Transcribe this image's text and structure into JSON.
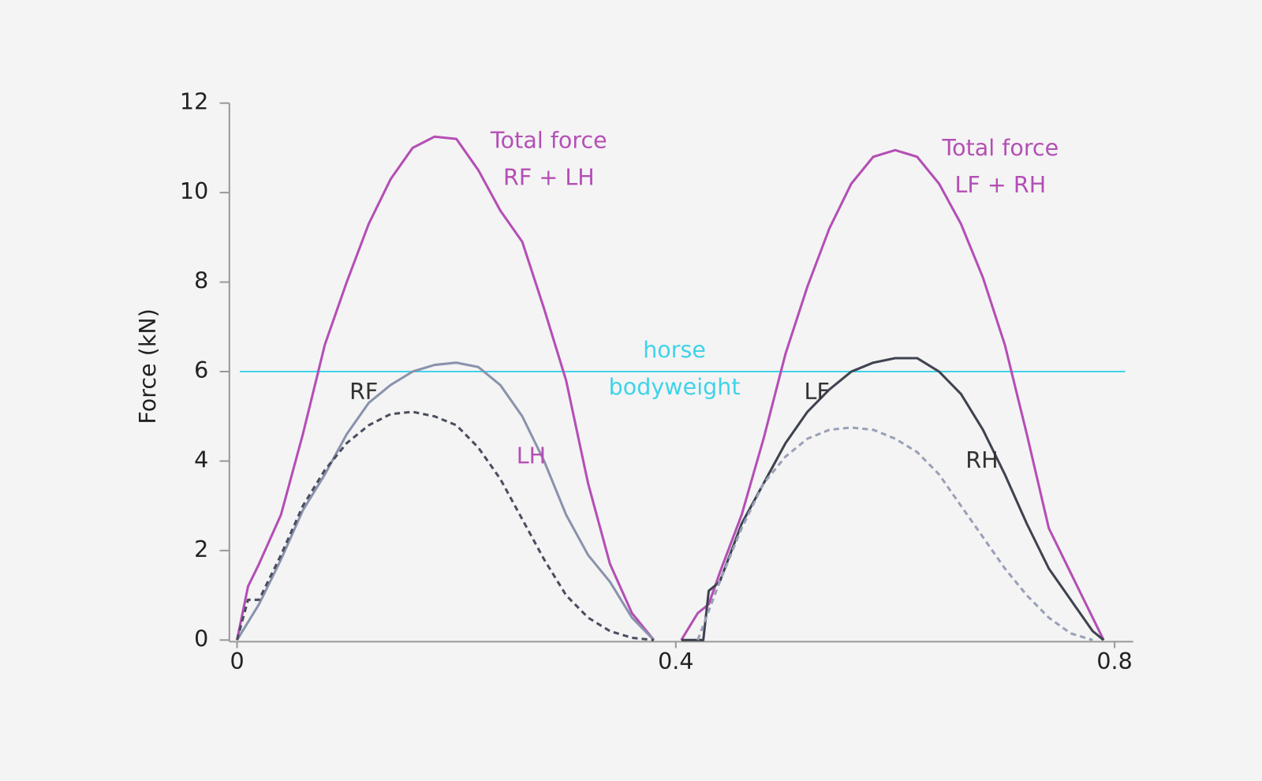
{
  "chart_data": {
    "type": "line",
    "y_label": "Force (kN)",
    "xlim": [
      -0.007,
      0.817
    ],
    "ylim": [
      0,
      12
    ],
    "xticks": [
      0,
      0.4,
      0.8
    ],
    "yticks": [
      0,
      2,
      4,
      6,
      8,
      10,
      12
    ],
    "grid": false,
    "series": [
      {
        "color": "#b44fb5",
        "dash": false,
        "x": [
          0,
          0.01,
          0.02,
          0.04,
          0.06,
          0.08,
          0.1,
          0.12,
          0.14,
          0.16,
          0.18,
          0.2,
          0.22,
          0.24,
          0.26,
          0.28,
          0.3,
          0.32,
          0.34,
          0.36,
          0.38
        ],
        "values": [
          0,
          1.2,
          1.7,
          2.8,
          4.6,
          6.6,
          8.0,
          9.3,
          10.3,
          11.0,
          11.25,
          11.2,
          10.5,
          9.6,
          8.9,
          7.4,
          5.8,
          3.5,
          1.7,
          0.6,
          0
        ]
      },
      {
        "color": "#b44fb5",
        "dash": false,
        "x": [
          0.405,
          0.42,
          0.43,
          0.44,
          0.46,
          0.48,
          0.5,
          0.52,
          0.54,
          0.56,
          0.58,
          0.6,
          0.62,
          0.64,
          0.66,
          0.68,
          0.7,
          0.72,
          0.74,
          0.76,
          0.78,
          0.79
        ],
        "values": [
          0,
          0.6,
          0.8,
          1.5,
          2.8,
          4.5,
          6.4,
          7.9,
          9.2,
          10.2,
          10.8,
          10.95,
          10.8,
          10.2,
          9.3,
          8.1,
          6.6,
          4.6,
          2.5,
          1.5,
          0.5,
          0
        ]
      },
      {
        "name": "RF",
        "color": "#8a93ad",
        "dash": false,
        "x": [
          0,
          0.02,
          0.04,
          0.06,
          0.08,
          0.1,
          0.12,
          0.14,
          0.16,
          0.18,
          0.2,
          0.22,
          0.24,
          0.26,
          0.28,
          0.3,
          0.32,
          0.34,
          0.36,
          0.38
        ],
        "values": [
          0,
          0.8,
          1.8,
          2.9,
          3.7,
          4.6,
          5.3,
          5.7,
          6.0,
          6.15,
          6.2,
          6.1,
          5.7,
          5.0,
          4.0,
          2.8,
          1.9,
          1.3,
          0.5,
          0
        ]
      },
      {
        "name": "LH",
        "color": "#4a4e5e",
        "dash": true,
        "x": [
          0,
          0.01,
          0.02,
          0.04,
          0.06,
          0.08,
          0.1,
          0.12,
          0.14,
          0.16,
          0.18,
          0.2,
          0.22,
          0.24,
          0.26,
          0.28,
          0.3,
          0.32,
          0.34,
          0.36,
          0.38
        ],
        "values": [
          0,
          0.9,
          0.9,
          1.9,
          3.0,
          3.8,
          4.4,
          4.8,
          5.05,
          5.1,
          5.0,
          4.8,
          4.3,
          3.6,
          2.7,
          1.8,
          1.0,
          0.5,
          0.2,
          0.05,
          0
        ]
      },
      {
        "name": "LF",
        "color": "#3f4350",
        "dash": false,
        "x": [
          0.405,
          0.425,
          0.43,
          0.44,
          0.46,
          0.48,
          0.5,
          0.52,
          0.54,
          0.56,
          0.58,
          0.6,
          0.62,
          0.64,
          0.66,
          0.68,
          0.7,
          0.72,
          0.74,
          0.76,
          0.78,
          0.79
        ],
        "values": [
          0,
          0,
          1.1,
          1.3,
          2.6,
          3.5,
          4.4,
          5.1,
          5.6,
          6.0,
          6.2,
          6.3,
          6.3,
          6.0,
          5.5,
          4.7,
          3.7,
          2.6,
          1.6,
          0.9,
          0.2,
          0
        ]
      },
      {
        "name": "RH",
        "color": "#9aa0b8",
        "dash": true,
        "x": [
          0.42,
          0.44,
          0.46,
          0.48,
          0.5,
          0.52,
          0.54,
          0.56,
          0.58,
          0.6,
          0.62,
          0.64,
          0.66,
          0.68,
          0.7,
          0.72,
          0.74,
          0.76,
          0.78
        ],
        "values": [
          0,
          1.3,
          2.5,
          3.5,
          4.1,
          4.5,
          4.7,
          4.75,
          4.7,
          4.5,
          4.2,
          3.7,
          3.0,
          2.3,
          1.6,
          1.0,
          0.5,
          0.15,
          0
        ]
      }
    ],
    "annotations": [
      {
        "lines": [
          "Total force",
          "RF + LH"
        ],
        "color": "#b44fb5"
      },
      {
        "lines": [
          "Total force",
          "LF + RH"
        ],
        "color": "#b44fb5"
      }
    ],
    "reference_lines": [
      {
        "value": 6,
        "lines": [
          "horse",
          "bodyweight"
        ],
        "color": "#3fd3e8"
      }
    ]
  }
}
